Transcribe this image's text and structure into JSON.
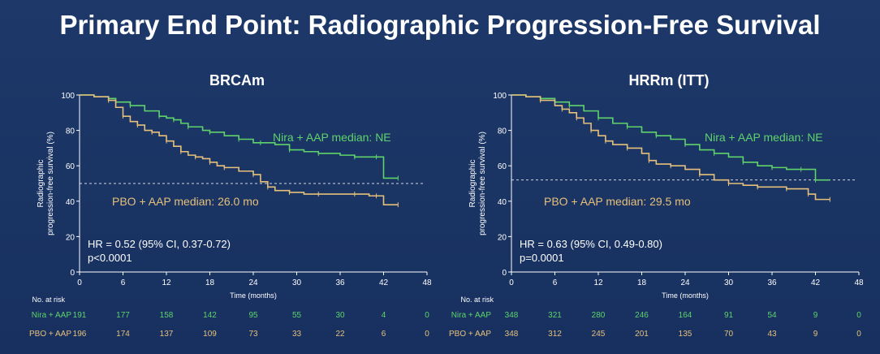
{
  "slide": {
    "title": "Primary End Point: Radiographic Progression-Free Survival"
  },
  "colors": {
    "background": "#1b3466",
    "nira": "#5fd36a",
    "pbo": "#e6c07a",
    "axis": "#ffffff",
    "title": "#ffffff"
  },
  "chart_data": [
    {
      "type": "line",
      "title": "BRCAm",
      "xlabel": "Time (months)",
      "ylabel_line1": "Radiographic",
      "ylabel_line2": "progression-free survival (%)",
      "xlim": [
        0,
        48
      ],
      "ylim": [
        0,
        100
      ],
      "xticks": [
        "0",
        "6",
        "12",
        "18",
        "24",
        "30",
        "36",
        "42",
        "48"
      ],
      "yticks": [
        "0",
        "20",
        "40",
        "60",
        "80",
        "100"
      ],
      "median_line": 50,
      "series": [
        {
          "name": "Nira + AAP",
          "label": "Nira + AAP median: NE",
          "x": [
            0,
            2,
            4,
            5,
            7,
            9,
            11,
            12,
            13,
            14,
            15,
            17,
            18,
            20,
            22,
            24,
            25,
            27,
            29,
            31,
            33,
            36,
            38,
            40,
            41,
            42,
            44
          ],
          "y": [
            100,
            99,
            98,
            96,
            94,
            91,
            88,
            87,
            86,
            84,
            82,
            80,
            79,
            77,
            75,
            73,
            73,
            72,
            69,
            68,
            67,
            66,
            65,
            65,
            65,
            53,
            53
          ]
        },
        {
          "name": "PBO + AAP",
          "label": "PBO + AAP median: 26.0 mo",
          "x": [
            0,
            2,
            4,
            5,
            6,
            7,
            8,
            9,
            10,
            11,
            12,
            13,
            14,
            15,
            16,
            17,
            18,
            19,
            20,
            22,
            24,
            25,
            26,
            27,
            29,
            31,
            33,
            36,
            38,
            40,
            41,
            42,
            44
          ],
          "y": [
            100,
            99,
            97,
            93,
            88,
            85,
            83,
            80,
            79,
            77,
            74,
            71,
            68,
            66,
            65,
            64,
            62,
            60,
            59,
            57,
            55,
            51,
            48,
            46,
            45,
            44,
            44,
            44,
            44,
            43,
            43,
            38,
            38
          ]
        }
      ],
      "hr_line1": "HR = 0.52 (95% CI, 0.37-0.72)",
      "hr_line2": "p<0.0001",
      "risk_label": "No. at risk",
      "risk": [
        {
          "name": "Nira + AAP",
          "values": [
            "191",
            "177",
            "158",
            "142",
            "95",
            "55",
            "30",
            "4",
            "0"
          ]
        },
        {
          "name": "PBO + AAP",
          "values": [
            "196",
            "174",
            "137",
            "109",
            "73",
            "33",
            "22",
            "6",
            "0"
          ]
        }
      ]
    },
    {
      "type": "line",
      "title": "HRRm (ITT)",
      "xlabel": "Time (months)",
      "ylabel_line1": "Radiographic",
      "ylabel_line2": "progression-free survival (%)",
      "xlim": [
        0,
        48
      ],
      "ylim": [
        0,
        100
      ],
      "xticks": [
        "0",
        "6",
        "12",
        "18",
        "24",
        "30",
        "36",
        "42",
        "48"
      ],
      "yticks": [
        "0",
        "20",
        "40",
        "60",
        "80",
        "100"
      ],
      "median_line": 52,
      "series": [
        {
          "name": "Nira + AAP",
          "label": "Nira + AAP median: NE",
          "x": [
            0,
            2,
            4,
            6,
            8,
            10,
            12,
            14,
            16,
            18,
            20,
            22,
            24,
            26,
            28,
            30,
            32,
            34,
            36,
            38,
            40,
            41,
            42,
            44
          ],
          "y": [
            100,
            99,
            98,
            96,
            94,
            91,
            87,
            84,
            82,
            79,
            77,
            75,
            72,
            69,
            67,
            65,
            62,
            60,
            59,
            58,
            58,
            58,
            52,
            52
          ]
        },
        {
          "name": "PBO + AAP",
          "label": "PBO + AAP median: 29.5 mo",
          "x": [
            0,
            2,
            4,
            6,
            7,
            8,
            9,
            10,
            11,
            12,
            13,
            14,
            16,
            18,
            19,
            20,
            22,
            24,
            26,
            28,
            30,
            32,
            34,
            36,
            38,
            40,
            41,
            42,
            44
          ],
          "y": [
            100,
            99,
            97,
            94,
            92,
            90,
            87,
            84,
            80,
            77,
            74,
            72,
            70,
            67,
            63,
            61,
            60,
            58,
            55,
            52,
            50,
            49,
            48,
            48,
            47,
            47,
            44,
            41,
            41
          ]
        }
      ],
      "hr_line1": "HR = 0.63 (95% CI, 0.49-0.80)",
      "hr_line2": "p=0.0001",
      "risk_label": "No. at risk",
      "risk": [
        {
          "name": "Nira + AAP",
          "values": [
            "348",
            "321",
            "280",
            "246",
            "164",
            "91",
            "54",
            "9",
            "0"
          ]
        },
        {
          "name": "PBO + AAP",
          "values": [
            "348",
            "312",
            "245",
            "201",
            "135",
            "70",
            "43",
            "9",
            "0"
          ]
        }
      ]
    }
  ]
}
